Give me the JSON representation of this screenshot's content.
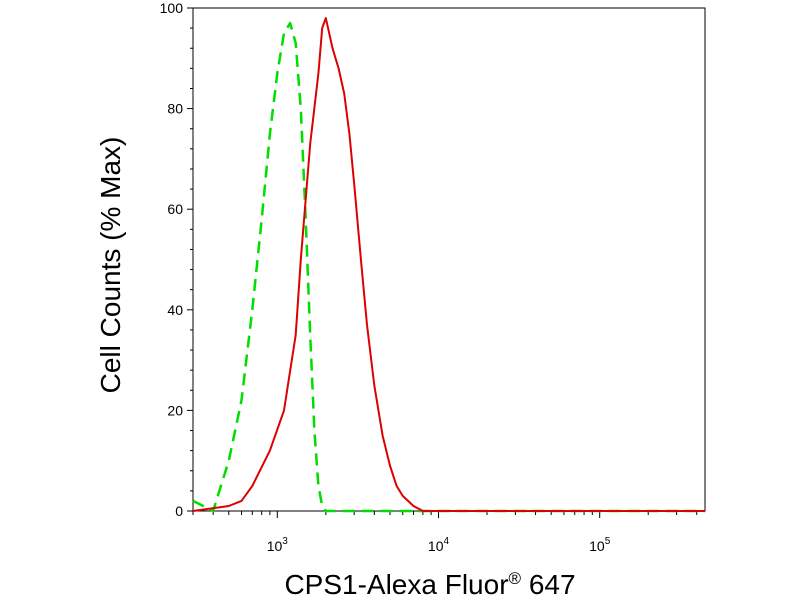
{
  "chart_data": {
    "type": "line",
    "title": "",
    "xlabel": "CPS1-Alexa Fluor",
    "xlabel_mark": "®",
    "xlabel_tail": " 647",
    "ylabel": "Cell Counts (% Max)",
    "x_scale": "log",
    "xlim": [
      300,
      450000
    ],
    "ylim": [
      0,
      100
    ],
    "x_ticks": [
      {
        "base": "10",
        "exp": "3",
        "value": 1000
      },
      {
        "base": "10",
        "exp": "4",
        "value": 10000
      },
      {
        "base": "10",
        "exp": "5",
        "value": 100000
      }
    ],
    "y_ticks": [
      {
        "label": "0",
        "value": 0
      },
      {
        "label": "20",
        "value": 20
      },
      {
        "label": "40",
        "value": 40
      },
      {
        "label": "60",
        "value": 60
      },
      {
        "label": "80",
        "value": 80
      },
      {
        "label": "100",
        "value": 100
      }
    ],
    "grid": false,
    "series": [
      {
        "color": "#00dd00",
        "style": "dashed",
        "x": [
          300,
          400,
          500,
          600,
          700,
          800,
          900,
          1000,
          1100,
          1200,
          1300,
          1400,
          1500,
          1600,
          1700,
          1800,
          1900,
          2000,
          2200,
          2600,
          4000,
          450000
        ],
        "y": [
          2,
          0,
          10,
          22,
          40,
          58,
          75,
          87,
          95,
          97,
          93,
          80,
          58,
          35,
          16,
          5,
          1,
          0,
          0,
          0,
          0,
          0
        ]
      },
      {
        "color": "#dd0000",
        "style": "solid",
        "x": [
          300,
          500,
          600,
          700,
          900,
          1100,
          1300,
          1400,
          1600,
          1800,
          1900,
          2000,
          2100,
          2200,
          2400,
          2600,
          2800,
          3000,
          3300,
          3600,
          4000,
          4500,
          5000,
          5500,
          6000,
          7000,
          8000,
          10000,
          450000
        ],
        "y": [
          0,
          1,
          2,
          5,
          12,
          20,
          35,
          50,
          73,
          87,
          96,
          98,
          95,
          92,
          88,
          83,
          75,
          65,
          50,
          37,
          25,
          15,
          9,
          5,
          3,
          1,
          0,
          0,
          0
        ]
      }
    ]
  }
}
